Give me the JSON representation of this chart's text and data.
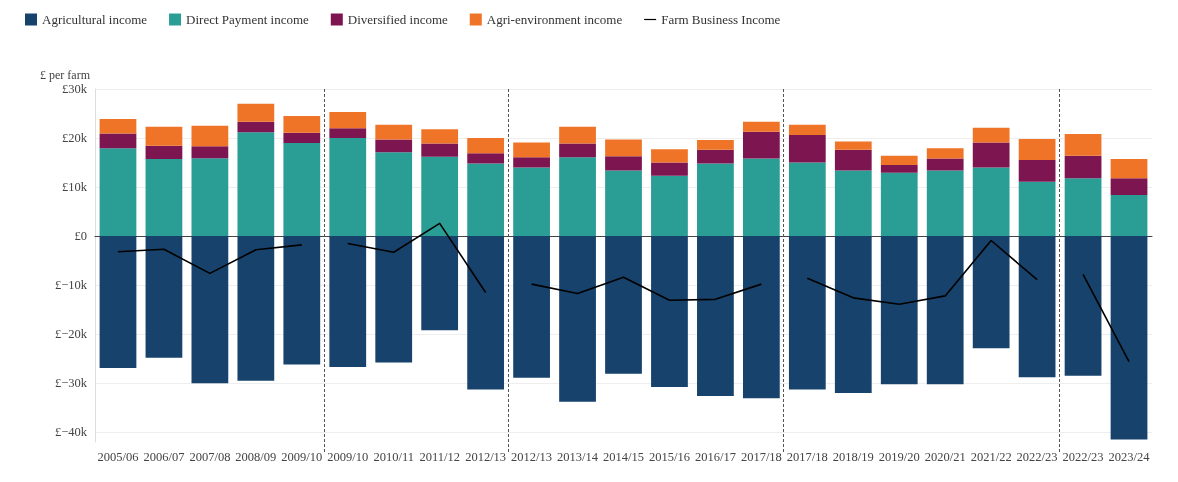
{
  "chart_data": {
    "type": "bar",
    "stacked": true,
    "ylabel": "£ per farm",
    "categories": [
      "2005/06",
      "2006/07",
      "2007/08",
      "2008/09",
      "2009/10",
      "2009/10",
      "2010/11",
      "2011/12",
      "2012/13",
      "2012/13",
      "2013/14",
      "2014/15",
      "2015/16",
      "2016/17",
      "2017/18",
      "2017/18",
      "2018/19",
      "2019/20",
      "2020/21",
      "2021/22",
      "2022/23",
      "2022/23",
      "2023/24"
    ],
    "series": [
      {
        "name": "Agricultural income",
        "color": "#17426b",
        "values": [
          -26.9,
          -24.8,
          -30.0,
          -29.5,
          -26.2,
          -26.7,
          -25.8,
          -19.2,
          -31.3,
          -28.9,
          -33.8,
          -28.1,
          -30.8,
          -32.6,
          -33.1,
          -31.3,
          -32.0,
          -30.2,
          -30.2,
          -22.9,
          -28.8,
          -28.5,
          -41.5
        ]
      },
      {
        "name": "Direct Payment income",
        "color": "#2a9d94",
        "values": [
          17.9,
          15.7,
          15.9,
          21.2,
          19.0,
          20.0,
          17.1,
          16.2,
          14.8,
          14.0,
          16.1,
          13.4,
          12.3,
          14.8,
          15.8,
          15.0,
          13.4,
          12.9,
          13.4,
          14.0,
          11.1,
          11.8,
          8.4
        ]
      },
      {
        "name": "Diversified income",
        "color": "#7d1650",
        "values": [
          3.0,
          2.7,
          2.4,
          2.1,
          2.1,
          2.0,
          2.6,
          2.7,
          2.1,
          2.1,
          2.8,
          2.9,
          2.7,
          2.8,
          5.5,
          5.6,
          4.2,
          1.6,
          2.4,
          5.1,
          4.4,
          4.6,
          3.4
        ]
      },
      {
        "name": "Agri-environment income",
        "color": "#f07427",
        "values": [
          3.0,
          3.9,
          4.2,
          3.7,
          3.4,
          3.3,
          3.0,
          2.9,
          3.1,
          3.0,
          3.4,
          3.4,
          2.7,
          2.0,
          2.0,
          2.1,
          1.7,
          1.9,
          2.1,
          3.0,
          4.3,
          4.4,
          3.9
        ]
      },
      {
        "type": "line",
        "name": "Farm Business Income",
        "color": "#000000",
        "values": [
          -3.2,
          -2.7,
          -7.6,
          -2.8,
          -1.8,
          null,
          null,
          null,
          null,
          null,
          null,
          null,
          null,
          null,
          null,
          null,
          null,
          null,
          null,
          null,
          null,
          null,
          null
        ]
      },
      {
        "type": "line",
        "color": "#000000",
        "values": [
          null,
          null,
          null,
          null,
          null,
          -1.5,
          -3.3,
          2.6,
          -11.5,
          null,
          null,
          null,
          null,
          null,
          null,
          null,
          null,
          null,
          null,
          null,
          null,
          null,
          null
        ]
      },
      {
        "type": "line",
        "color": "#000000",
        "values": [
          null,
          null,
          null,
          null,
          null,
          null,
          null,
          null,
          null,
          -9.8,
          -11.7,
          -8.4,
          -13.1,
          -12.9,
          -9.8,
          null,
          null,
          null,
          null,
          null,
          null,
          null,
          null
        ]
      },
      {
        "type": "line",
        "color": "#000000",
        "values": [
          null,
          null,
          null,
          null,
          null,
          null,
          null,
          null,
          null,
          null,
          null,
          null,
          null,
          null,
          null,
          -8.6,
          -12.6,
          -13.9,
          -12.2,
          -0.9,
          -8.9,
          null,
          null
        ]
      },
      {
        "type": "line",
        "color": "#000000",
        "values": [
          null,
          null,
          null,
          null,
          null,
          null,
          null,
          null,
          null,
          null,
          null,
          null,
          null,
          null,
          null,
          null,
          null,
          null,
          null,
          null,
          null,
          -7.8,
          -25.6
        ]
      }
    ],
    "ylim": [
      -42,
      30
    ],
    "yticks": [
      {
        "value": -40,
        "label": "£−40k"
      },
      {
        "value": -30,
        "label": "£−30k"
      },
      {
        "value": -20,
        "label": "£−20k"
      },
      {
        "value": -10,
        "label": "£−10k"
      },
      {
        "value": 0,
        "label": "£0"
      },
      {
        "value": 10,
        "label": "£10k"
      },
      {
        "value": 20,
        "label": "£20k"
      },
      {
        "value": 30,
        "label": "£30k"
      }
    ],
    "grid": "y",
    "legend": "top left",
    "marker": "none",
    "line_style": "solid"
  }
}
